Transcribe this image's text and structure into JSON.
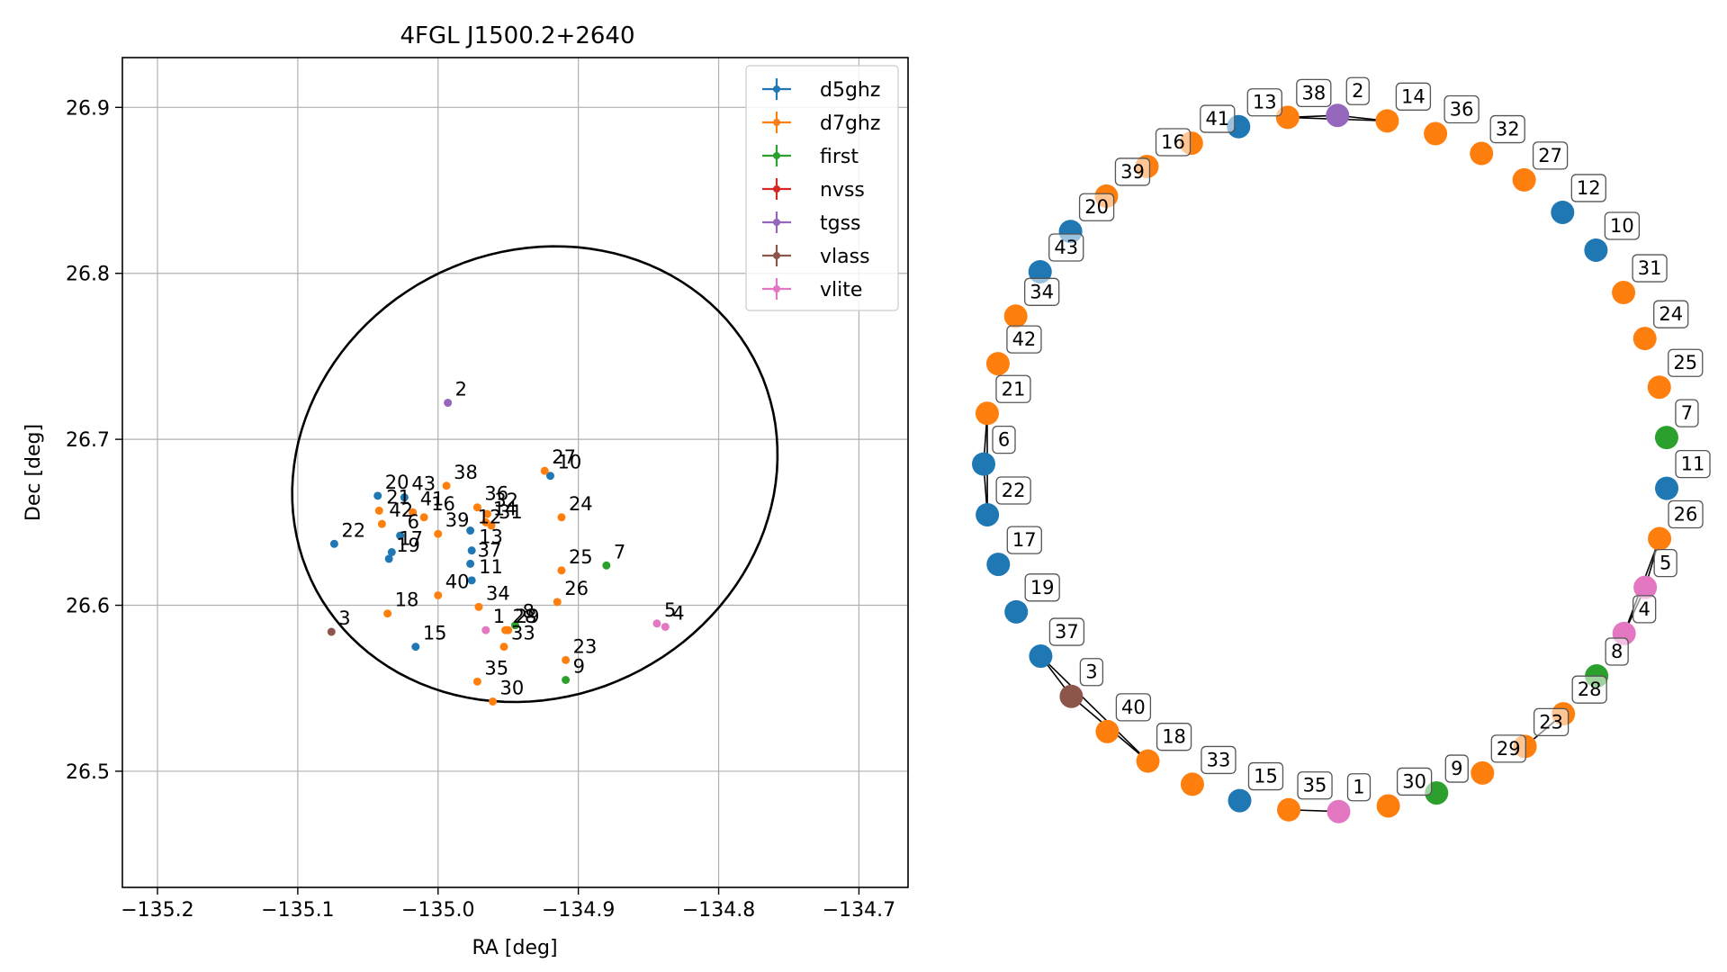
{
  "colors": {
    "d5ghz": "#1f77b4",
    "d7ghz": "#ff7f0e",
    "first": "#2ca02c",
    "nvss": "#d62728",
    "tgss": "#9467bd",
    "vlass": "#8c564b",
    "vlite": "#e377c2"
  },
  "chart_data": [
    {
      "type": "scatter",
      "title": "4FGL J1500.2+2640",
      "xlabel": "RA [deg]",
      "ylabel": "Dec [deg]",
      "xlim": [
        -135.225,
        -134.665
      ],
      "ylim": [
        26.43,
        26.93
      ],
      "xticks": [
        -135.2,
        -135.1,
        -135.0,
        -134.9,
        -134.8,
        -134.7
      ],
      "xtick_labels": [
        "−135.2",
        "−135.1",
        "−135.0",
        "−134.9",
        "−134.8",
        "−134.7"
      ],
      "yticks": [
        26.5,
        26.6,
        26.7,
        26.8,
        26.9
      ],
      "ytick_labels": [
        "26.5",
        "26.6",
        "26.7",
        "26.8",
        "26.9"
      ],
      "grid": true,
      "legend_position": "top-right",
      "legend": [
        "d5ghz",
        "d7ghz",
        "first",
        "nvss",
        "tgss",
        "vlass",
        "vlite"
      ],
      "ellipse": {
        "center": [
          -134.931,
          26.679
        ],
        "semi_axes": [
          0.174,
          0.136
        ],
        "angle_deg": 10
      },
      "points": [
        {
          "label": "1",
          "series": "vlite",
          "x": -134.966,
          "y": 26.585
        },
        {
          "label": "2",
          "series": "tgss",
          "x": -134.993,
          "y": 26.722
        },
        {
          "label": "3",
          "series": "vlass",
          "x": -135.076,
          "y": 26.584
        },
        {
          "label": "4",
          "series": "vlite",
          "x": -134.838,
          "y": 26.587
        },
        {
          "label": "5",
          "series": "vlite",
          "x": -134.844,
          "y": 26.589
        },
        {
          "label": "6",
          "series": "d5ghz",
          "x": -135.027,
          "y": 26.642
        },
        {
          "label": "7",
          "series": "first",
          "x": -134.88,
          "y": 26.624
        },
        {
          "label": "8",
          "series": "first",
          "x": -134.945,
          "y": 26.588
        },
        {
          "label": "9",
          "series": "first",
          "x": -134.909,
          "y": 26.555
        },
        {
          "label": "10",
          "series": "d5ghz",
          "x": -134.92,
          "y": 26.678
        },
        {
          "label": "11",
          "series": "d5ghz",
          "x": -134.976,
          "y": 26.615
        },
        {
          "label": "12",
          "series": "d5ghz",
          "x": -134.977,
          "y": 26.645
        },
        {
          "label": "13",
          "series": "d5ghz",
          "x": -134.976,
          "y": 26.633
        },
        {
          "label": "14",
          "series": "d7ghz",
          "x": -134.966,
          "y": 26.65
        },
        {
          "label": "15",
          "series": "d5ghz",
          "x": -135.016,
          "y": 26.575
        },
        {
          "label": "16",
          "series": "d7ghz",
          "x": -135.01,
          "y": 26.653
        },
        {
          "label": "17",
          "series": "d5ghz",
          "x": -135.033,
          "y": 26.632
        },
        {
          "label": "18",
          "series": "d7ghz",
          "x": -135.036,
          "y": 26.595
        },
        {
          "label": "19",
          "series": "d5ghz",
          "x": -135.035,
          "y": 26.628
        },
        {
          "label": "20",
          "series": "d5ghz",
          "x": -135.043,
          "y": 26.666
        },
        {
          "label": "21",
          "series": "d7ghz",
          "x": -135.042,
          "y": 26.657
        },
        {
          "label": "22",
          "series": "d5ghz",
          "x": -135.074,
          "y": 26.637
        },
        {
          "label": "23",
          "series": "d7ghz",
          "x": -134.909,
          "y": 26.567
        },
        {
          "label": "24",
          "series": "d7ghz",
          "x": -134.912,
          "y": 26.653
        },
        {
          "label": "25",
          "series": "d7ghz",
          "x": -134.912,
          "y": 26.621
        },
        {
          "label": "26",
          "series": "d7ghz",
          "x": -134.915,
          "y": 26.602
        },
        {
          "label": "27",
          "series": "d7ghz",
          "x": -134.924,
          "y": 26.681
        },
        {
          "label": "28",
          "series": "d7ghz",
          "x": -134.952,
          "y": 26.585
        },
        {
          "label": "29",
          "series": "d7ghz",
          "x": -134.95,
          "y": 26.585
        },
        {
          "label": "30",
          "series": "d7ghz",
          "x": -134.961,
          "y": 26.542
        },
        {
          "label": "31",
          "series": "d7ghz",
          "x": -134.962,
          "y": 26.648
        },
        {
          "label": "32",
          "series": "d7ghz",
          "x": -134.965,
          "y": 26.655
        },
        {
          "label": "33",
          "series": "d7ghz",
          "x": -134.953,
          "y": 26.575
        },
        {
          "label": "34",
          "series": "d7ghz",
          "x": -134.971,
          "y": 26.599
        },
        {
          "label": "35",
          "series": "d7ghz",
          "x": -134.972,
          "y": 26.554
        },
        {
          "label": "36",
          "series": "d7ghz",
          "x": -134.972,
          "y": 26.659
        },
        {
          "label": "37",
          "series": "d5ghz",
          "x": -134.977,
          "y": 26.625
        },
        {
          "label": "38",
          "series": "d7ghz",
          "x": -134.994,
          "y": 26.672
        },
        {
          "label": "39",
          "series": "d7ghz",
          "x": -135.0,
          "y": 26.643
        },
        {
          "label": "40",
          "series": "d7ghz",
          "x": -135.0,
          "y": 26.606
        },
        {
          "label": "41",
          "series": "d7ghz",
          "x": -135.018,
          "y": 26.656
        },
        {
          "label": "42",
          "series": "d7ghz",
          "x": -135.04,
          "y": 26.649
        },
        {
          "label": "43",
          "series": "d5ghz",
          "x": -135.024,
          "y": 26.665
        }
      ]
    },
    {
      "type": "network",
      "node_labels": [
        "2",
        "14",
        "36",
        "32",
        "27",
        "12",
        "10",
        "31",
        "24",
        "25",
        "7",
        "11",
        "26",
        "5",
        "4",
        "8",
        "28",
        "23",
        "29",
        "9",
        "30",
        "1",
        "35",
        "15",
        "33",
        "18",
        "40",
        "3",
        "37",
        "19",
        "17",
        "22",
        "6",
        "21",
        "42",
        "34",
        "43",
        "20",
        "39",
        "16",
        "41",
        "13",
        "38"
      ]
    }
  ]
}
